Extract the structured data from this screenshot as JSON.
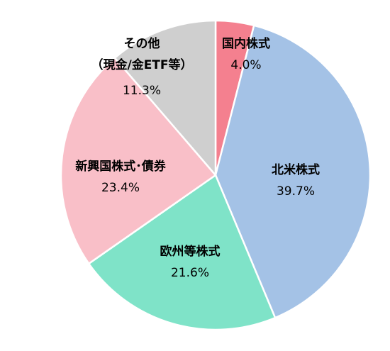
{
  "chart_data": {
    "type": "pie",
    "categories": [
      "国内株式",
      "北米株式",
      "欧州等株式",
      "新興国株式･債券",
      "その他\n（現金/金ETF等）"
    ],
    "values": [
      4.0,
      39.7,
      21.6,
      23.4,
      11.3
    ],
    "value_labels": [
      "4.0%",
      "39.7%",
      "21.6%",
      "23.4%",
      "11.3%"
    ],
    "colors": [
      "#f4808f",
      "#a4c2e6",
      "#7fe3c8",
      "#f9bfc8",
      "#cfcfcf"
    ]
  }
}
